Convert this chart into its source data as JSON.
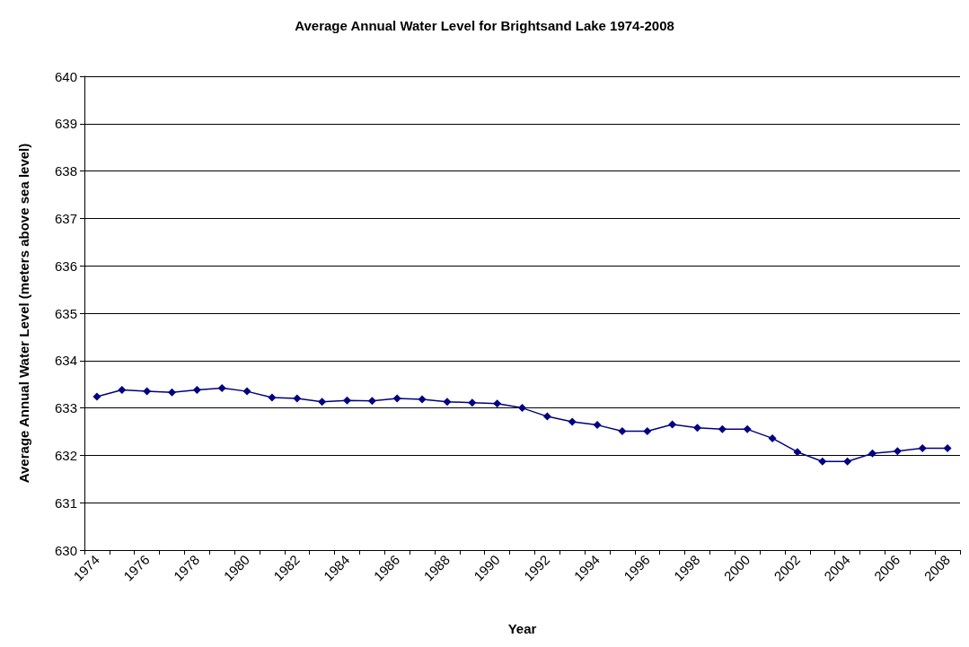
{
  "chart_data": {
    "type": "line",
    "title": "Average Annual Water Level for Brightsand Lake 1974-2008",
    "xlabel": "Year",
    "ylabel": "Average Annual Water Level (meters above sea level)",
    "categories": [
      "1974",
      null,
      "1976",
      null,
      "1978",
      null,
      "1980",
      null,
      "1982",
      null,
      "1984",
      null,
      "1986",
      null,
      "1988",
      null,
      "1990",
      null,
      "1992",
      null,
      "1994",
      null,
      "1996",
      null,
      "1998",
      null,
      "2000",
      null,
      "2002",
      null,
      "2004",
      null,
      "2006",
      null,
      "2008"
    ],
    "series": [
      {
        "color": "#000080",
        "values": [
          633.24,
          633.38,
          633.35,
          633.33,
          633.38,
          633.42,
          633.35,
          633.22,
          633.2,
          633.13,
          633.16,
          633.15,
          633.2,
          633.18,
          633.13,
          633.11,
          633.09,
          633.0,
          632.82,
          632.71,
          632.64,
          632.51,
          632.51,
          632.65,
          632.58,
          632.55,
          632.55,
          632.36,
          632.07,
          631.87,
          631.87,
          632.04,
          632.09,
          632.15,
          632.15
        ]
      }
    ],
    "ylim": [
      630,
      640
    ],
    "yticks": [
      630,
      631,
      632,
      633,
      634,
      635,
      636,
      637,
      638,
      639,
      640
    ],
    "grid": "y",
    "marker": "diamond",
    "line_style": "solid"
  }
}
